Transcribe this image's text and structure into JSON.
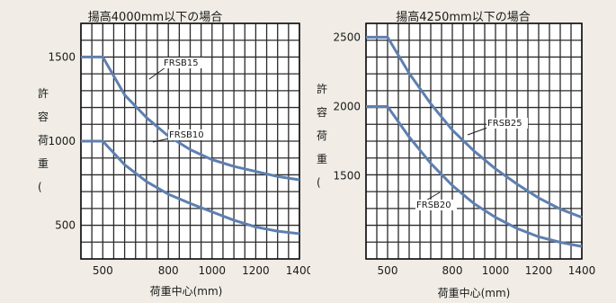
{
  "chart_data": [
    {
      "type": "line",
      "title": "揚高4000mm以下の場合",
      "xlabel": "荷重中心(mm)",
      "ylabel": "許容荷重(kg)",
      "xlim": [
        400,
        1400
      ],
      "ylim": [
        300,
        1700
      ],
      "xticks": [
        500,
        800,
        1000,
        1200,
        1400
      ],
      "xtick_labels": [
        "500",
        "800",
        "1000",
        "1200",
        "1400"
      ],
      "yticks": [
        500,
        1000,
        1500
      ],
      "ytick_labels": [
        "500",
        "1000",
        "1500"
      ],
      "grid": true,
      "series": [
        {
          "name": "FRSB15",
          "x": [
            400,
            500,
            600,
            700,
            800,
            900,
            1000,
            1100,
            1200,
            1300,
            1400
          ],
          "y": [
            1500,
            1500,
            1275,
            1140,
            1030,
            950,
            890,
            850,
            820,
            790,
            770
          ],
          "color": "#5e7fb0"
        },
        {
          "name": "FRSB10",
          "x": [
            400,
            500,
            600,
            700,
            800,
            900,
            1000,
            1100,
            1200,
            1300,
            1400
          ],
          "y": [
            1000,
            1000,
            860,
            760,
            685,
            630,
            580,
            530,
            490,
            465,
            450
          ],
          "color": "#5e7fb0"
        }
      ]
    },
    {
      "type": "line",
      "title": "揚高4250mm以下の場合",
      "xlabel": "荷重中心(mm)",
      "ylabel": "許容荷重(kg)",
      "xlim": [
        400,
        1400
      ],
      "ylim": [
        900,
        2600
      ],
      "xticks": [
        500,
        800,
        1000,
        1200,
        1400
      ],
      "xtick_labels": [
        "500",
        "800",
        "1000",
        "1200",
        "1400"
      ],
      "yticks": [
        1500,
        2000,
        2500
      ],
      "ytick_labels": [
        "1500",
        "2000",
        "2500"
      ],
      "grid": true,
      "series": [
        {
          "name": "FRSB25",
          "x": [
            400,
            500,
            600,
            700,
            800,
            900,
            1000,
            1100,
            1200,
            1300,
            1400
          ],
          "y": [
            2500,
            2500,
            2240,
            2020,
            1830,
            1680,
            1550,
            1440,
            1340,
            1260,
            1200
          ],
          "color": "#5e7fb0"
        },
        {
          "name": "FRSB20",
          "x": [
            400,
            500,
            600,
            700,
            800,
            900,
            1000,
            1100,
            1200,
            1300,
            1400
          ],
          "y": [
            2000,
            2000,
            1780,
            1590,
            1430,
            1300,
            1200,
            1120,
            1060,
            1020,
            990
          ],
          "color": "#5e7fb0"
        }
      ]
    }
  ]
}
